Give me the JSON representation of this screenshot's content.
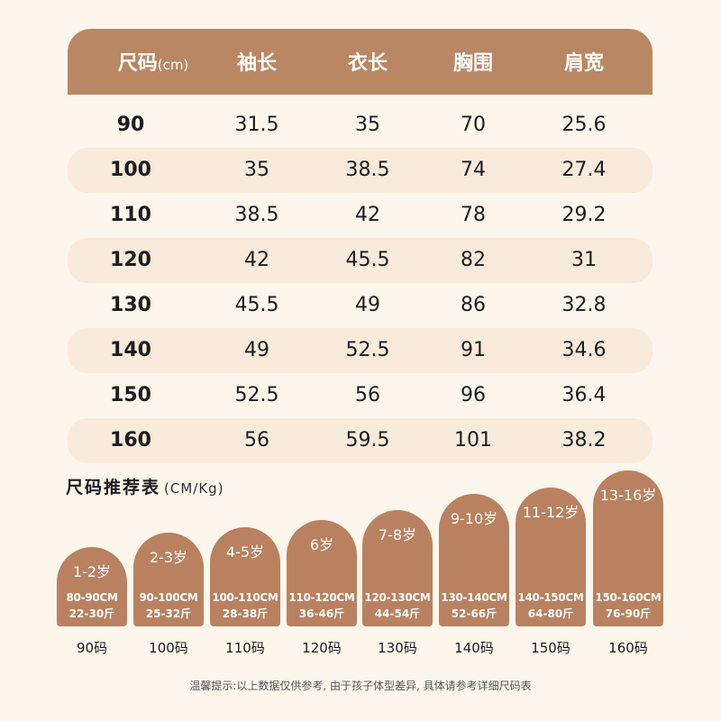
{
  "size_table": {
    "headers": [
      {
        "label": "尺码",
        "unit": "(cm)"
      },
      {
        "label": "袖长",
        "unit": ""
      },
      {
        "label": "衣长",
        "unit": ""
      },
      {
        "label": "胸围",
        "unit": ""
      },
      {
        "label": "肩宽",
        "unit": ""
      }
    ],
    "rows": [
      [
        "90",
        "31.5",
        "35",
        "70",
        "25.6"
      ],
      [
        "100",
        "35",
        "38.5",
        "74",
        "27.4"
      ],
      [
        "110",
        "38.5",
        "42",
        "78",
        "29.2"
      ],
      [
        "120",
        "42",
        "45.5",
        "82",
        "31"
      ],
      [
        "130",
        "45.5",
        "49",
        "86",
        "32.8"
      ],
      [
        "140",
        "49",
        "52.5",
        "91",
        "34.6"
      ],
      [
        "150",
        "52.5",
        "56",
        "96",
        "36.4"
      ],
      [
        "160",
        "56",
        "59.5",
        "101",
        "38.2"
      ]
    ]
  },
  "recommendation": {
    "title": "尺码推荐表",
    "unit": "(CM/Kg)",
    "items": [
      {
        "age": "1-2岁",
        "height": "80-90CM",
        "weight": "22-30斤",
        "size": "90码"
      },
      {
        "age": "2-3岁",
        "height": "90-100CM",
        "weight": "25-32斤",
        "size": "100码"
      },
      {
        "age": "4-5岁",
        "height": "100-110CM",
        "weight": "28-38斤",
        "size": "110码"
      },
      {
        "age": "6岁",
        "height": "110-120CM",
        "weight": "36-46斤",
        "size": "120码"
      },
      {
        "age": "7-8岁",
        "height": "120-130CM",
        "weight": "44-54斤",
        "size": "130码"
      },
      {
        "age": "9-10岁",
        "height": "130-140CM",
        "weight": "52-66斤",
        "size": "140码"
      },
      {
        "age": "11-12岁",
        "height": "140-150CM",
        "weight": "64-80斤",
        "size": "150码"
      },
      {
        "age": "13-16岁",
        "height": "150-160CM",
        "weight": "76-90斤",
        "size": "160码"
      }
    ]
  },
  "footnote": "温馨提示:以上数据仅供参考, 由于孩子体型差异, 具体请参考详细尺码表",
  "colors": {
    "background": "#fdf6ec",
    "header": "#b98763",
    "bar": "#b98160",
    "row_alt": "#f8ebdb"
  }
}
